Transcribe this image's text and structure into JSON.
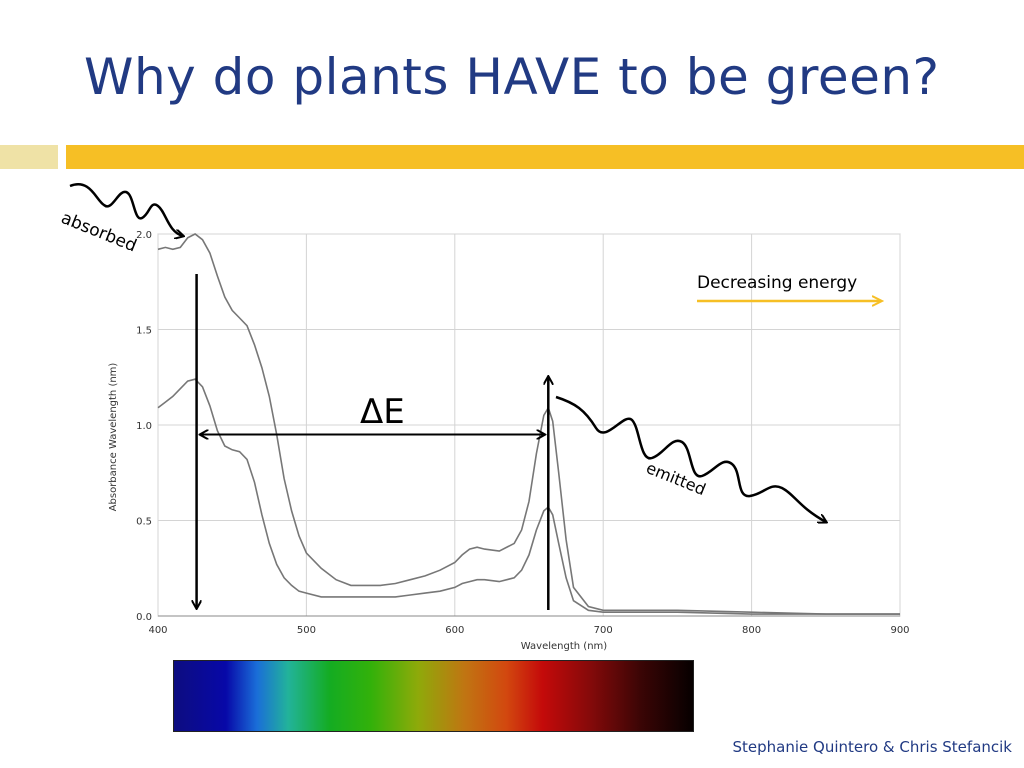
{
  "slide": {
    "title": "Why do plants HAVE to be green?",
    "credit": "Stephanie Quintero & Chris Stefancik",
    "accent_colors": {
      "title": "#213a83",
      "bar_light": "#efe2a6",
      "bar_dark": "#f6bf25",
      "arrow": "#f6bf25"
    }
  },
  "chart_data": {
    "type": "line",
    "xlabel": "Wavelength (nm)",
    "ylabel_lines": [
      "Absorbance",
      "Wavelength (nm)"
    ],
    "xlim": [
      400,
      900
    ],
    "ylim": [
      0,
      2.0
    ],
    "xticks": [
      400,
      500,
      600,
      700,
      800,
      900
    ],
    "yticks": [
      0.0,
      0.5,
      1.0,
      1.5,
      2.0
    ],
    "ytick_labels": [
      "0.0",
      "0.5",
      "1.0",
      "1.5",
      "2.0"
    ],
    "grid": true,
    "series": [
      {
        "color": "#777777",
        "x": [
          400,
          405,
          410,
          415,
          420,
          425,
          430,
          435,
          440,
          445,
          450,
          455,
          460,
          465,
          470,
          475,
          480,
          485,
          490,
          495,
          500,
          510,
          520,
          530,
          540,
          550,
          560,
          570,
          580,
          590,
          600,
          605,
          610,
          615,
          620,
          630,
          640,
          645,
          650,
          655,
          660,
          663,
          666,
          670,
          675,
          680,
          690,
          700,
          750,
          800,
          850,
          900
        ],
        "y": [
          1.92,
          1.93,
          1.92,
          1.93,
          1.98,
          2.0,
          1.97,
          1.9,
          1.78,
          1.67,
          1.6,
          1.56,
          1.52,
          1.42,
          1.3,
          1.15,
          0.95,
          0.72,
          0.55,
          0.42,
          0.33,
          0.25,
          0.19,
          0.16,
          0.16,
          0.16,
          0.17,
          0.19,
          0.21,
          0.24,
          0.28,
          0.32,
          0.35,
          0.36,
          0.35,
          0.34,
          0.38,
          0.45,
          0.6,
          0.85,
          1.05,
          1.09,
          1.02,
          0.75,
          0.4,
          0.15,
          0.05,
          0.03,
          0.03,
          0.02,
          0.01,
          0.01
        ]
      },
      {
        "color": "#777777",
        "x": [
          400,
          405,
          410,
          415,
          420,
          425,
          430,
          435,
          440,
          445,
          450,
          455,
          460,
          465,
          470,
          475,
          480,
          485,
          490,
          495,
          500,
          510,
          520,
          530,
          540,
          550,
          560,
          570,
          580,
          590,
          600,
          605,
          610,
          615,
          620,
          630,
          640,
          645,
          650,
          655,
          660,
          663,
          666,
          670,
          675,
          680,
          690,
          700,
          750,
          800,
          850,
          900
        ],
        "y": [
          1.09,
          1.12,
          1.15,
          1.19,
          1.23,
          1.24,
          1.2,
          1.1,
          0.97,
          0.89,
          0.87,
          0.86,
          0.82,
          0.7,
          0.53,
          0.38,
          0.27,
          0.2,
          0.16,
          0.13,
          0.12,
          0.1,
          0.1,
          0.1,
          0.1,
          0.1,
          0.1,
          0.11,
          0.12,
          0.13,
          0.15,
          0.17,
          0.18,
          0.19,
          0.19,
          0.18,
          0.2,
          0.24,
          0.32,
          0.45,
          0.55,
          0.57,
          0.53,
          0.38,
          0.2,
          0.08,
          0.03,
          0.02,
          0.02,
          0.01,
          0.01,
          0.01
        ]
      }
    ],
    "annotations": {
      "absorbed": "absorbed",
      "emitted": "emitted",
      "delta_e": "ΔE",
      "energy_label": "Decreasing energy",
      "absorb_arrow_x_nm": 426,
      "emit_arrow_x_nm": 663,
      "delta_e_y": 0.95
    }
  }
}
